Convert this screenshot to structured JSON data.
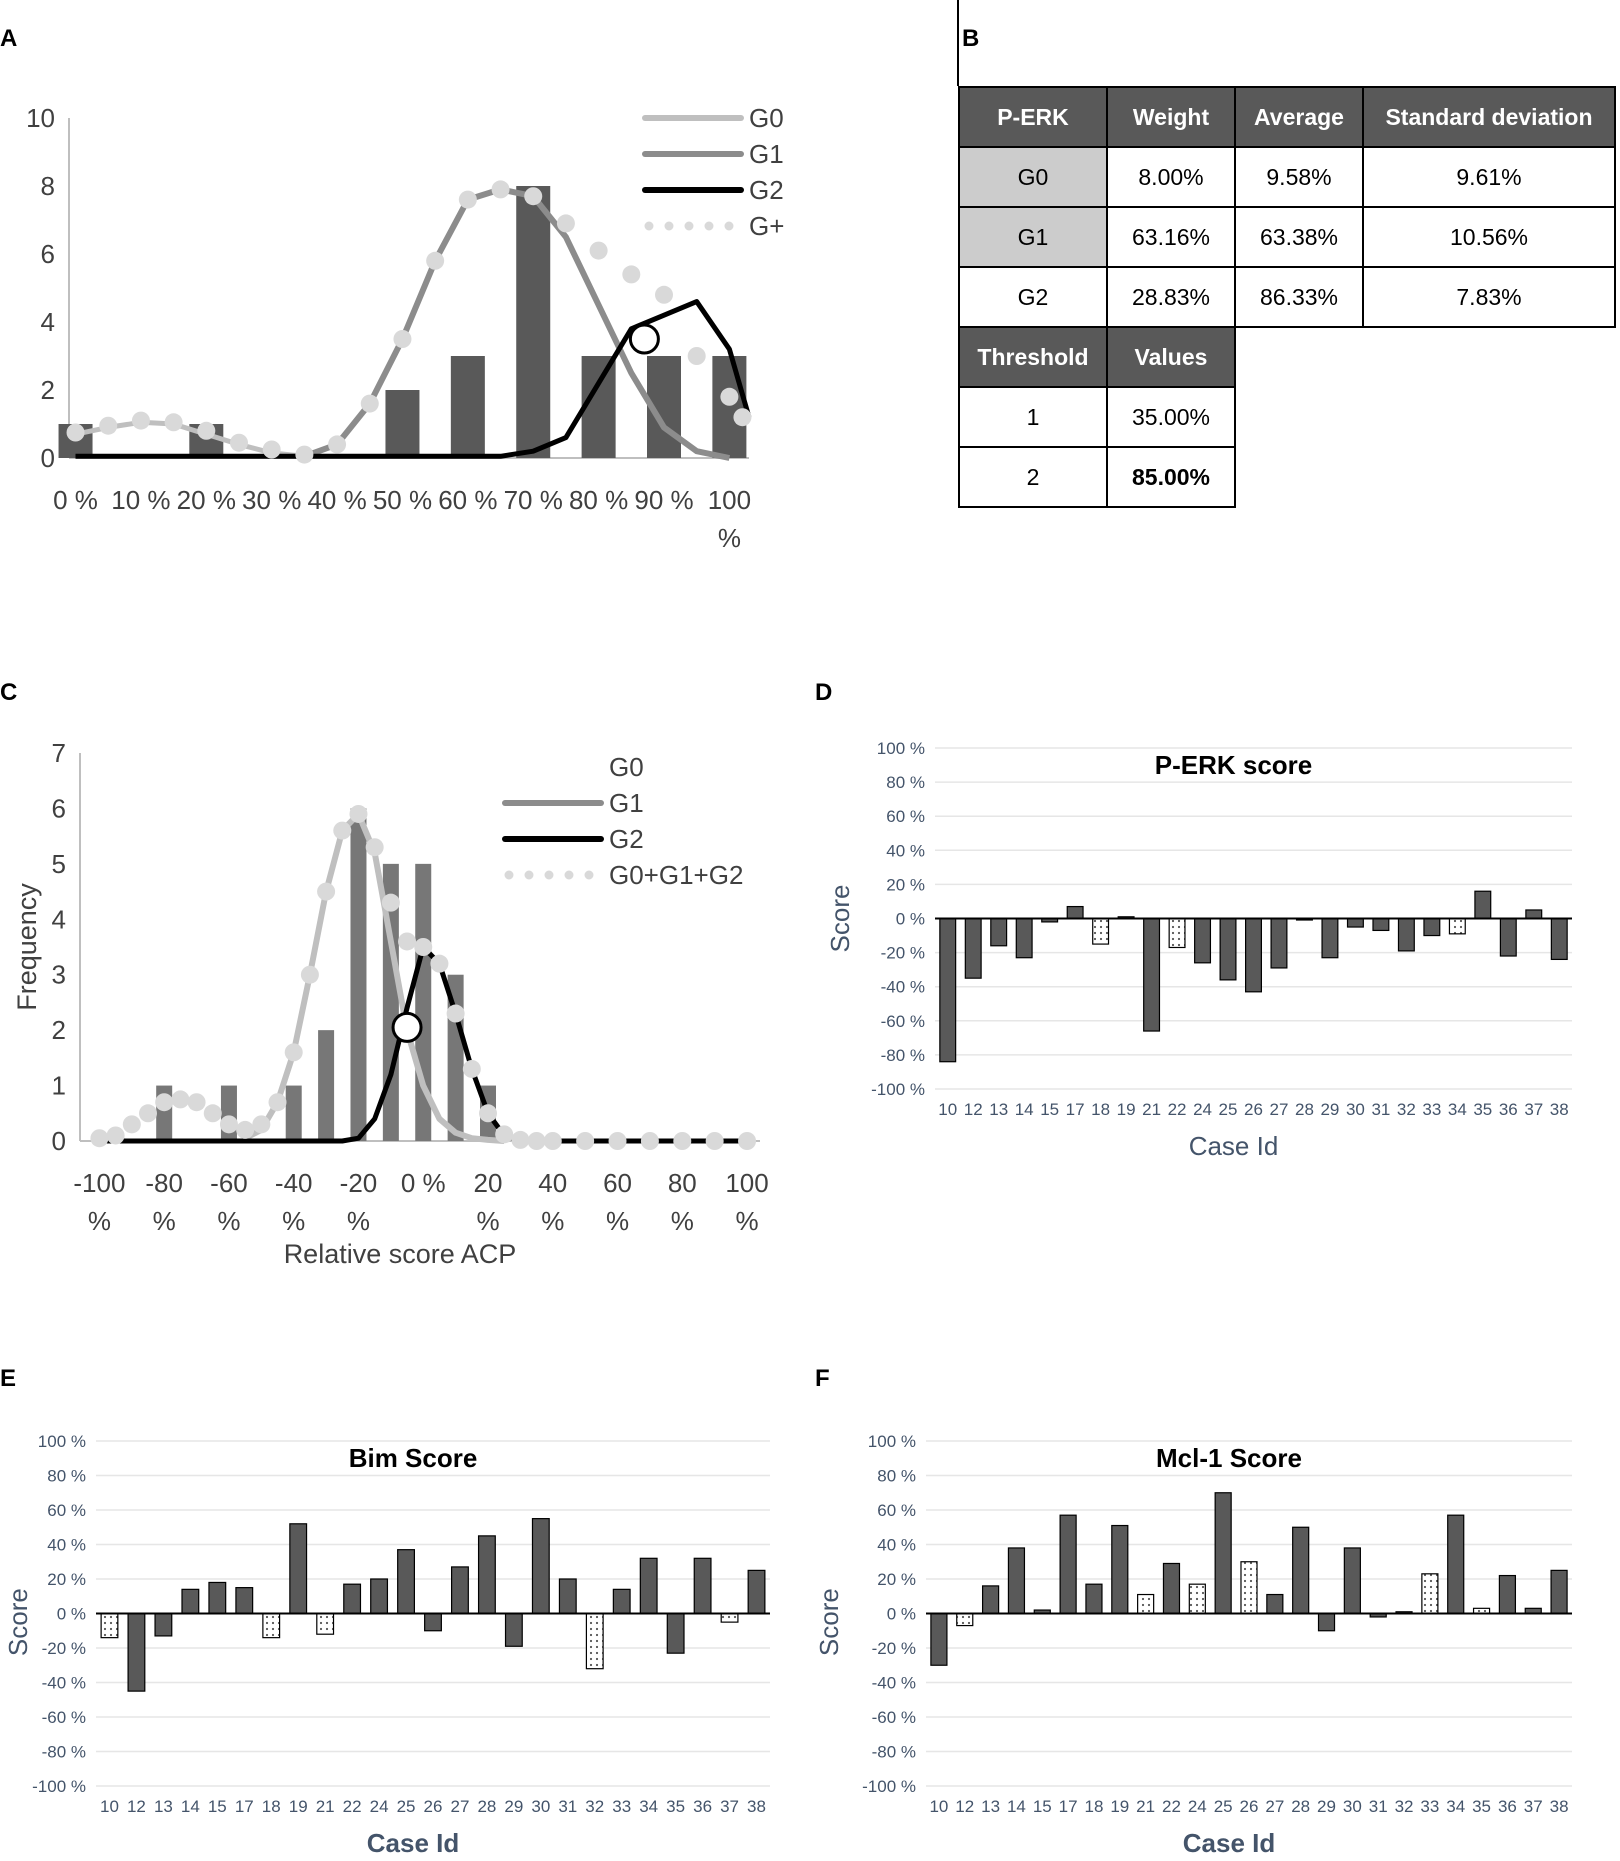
{
  "panel_labels": {
    "a": "A",
    "b": "B",
    "c": "C",
    "d": "D",
    "e": "E",
    "f": "F"
  },
  "colors": {
    "bar_dark": "#595959",
    "bar_mid": "#777777",
    "g0": "#bfbfbf",
    "g1": "#8c8c8c",
    "g2": "#000000",
    "gsum": "#d9d9d9",
    "grid": "#e6e6e6",
    "tick_blue": "#44546a"
  },
  "table_b": {
    "header": [
      "P-ERK",
      "Weight",
      "Average",
      "Standard deviation"
    ],
    "rows": [
      {
        "label": "G0",
        "weight": "8.00%",
        "average": "9.58%",
        "sd": "9.61%"
      },
      {
        "label": "G1",
        "weight": "63.16%",
        "average": "63.38%",
        "sd": "10.56%"
      },
      {
        "label": "G2",
        "weight": "28.83%",
        "average": "86.33%",
        "sd": "7.83%"
      }
    ],
    "threshold_header": [
      "Threshold",
      "Values"
    ],
    "thresholds": [
      {
        "label": "1",
        "value": "35.00%"
      },
      {
        "label": "2",
        "value": "85.00%"
      }
    ]
  },
  "chart_data": [
    {
      "id": "A",
      "type": "bar+line",
      "title": "",
      "xlabel": "",
      "ylabel": "",
      "ylim": [
        0,
        10
      ],
      "yticks": [
        "0",
        "2",
        "4",
        "6",
        "8",
        "10"
      ],
      "xtick_values": [
        0,
        10,
        20,
        30,
        40,
        50,
        60,
        70,
        80,
        90,
        100
      ],
      "xtick_labels": [
        {
          "l1": "0 %"
        },
        {
          "l1": "10 %"
        },
        {
          "l1": "20 %"
        },
        {
          "l1": "30 %"
        },
        {
          "l1": "40 %"
        },
        {
          "l1": "50 %"
        },
        {
          "l1": "60 %"
        },
        {
          "l1": "70 %"
        },
        {
          "l1": "80 %"
        },
        {
          "l1": "90 %"
        },
        {
          "l1": "100",
          "l2": "%"
        }
      ],
      "bars": [
        {
          "x": 0,
          "value": 1
        },
        {
          "x": 10,
          "value": 0
        },
        {
          "x": 20,
          "value": 1
        },
        {
          "x": 30,
          "value": 0
        },
        {
          "x": 40,
          "value": 0
        },
        {
          "x": 50,
          "value": 2
        },
        {
          "x": 60,
          "value": 3
        },
        {
          "x": 70,
          "value": 8
        },
        {
          "x": 80,
          "value": 3
        },
        {
          "x": 90,
          "value": 3
        },
        {
          "x": 100,
          "value": 3
        }
      ],
      "legend": [
        {
          "name": "G0",
          "style": "g0"
        },
        {
          "name": "G1",
          "style": "g1"
        },
        {
          "name": "G2",
          "style": "g2"
        },
        {
          "name": "G+",
          "style": "gsum"
        }
      ],
      "series": [
        {
          "name": "G0",
          "x": [
            0,
            5,
            10,
            15,
            20,
            25,
            30,
            35
          ],
          "values": [
            0.7,
            0.9,
            1.05,
            1.0,
            0.7,
            0.4,
            0.15,
            0.05
          ]
        },
        {
          "name": "G1",
          "x": [
            35,
            40,
            45,
            50,
            55,
            60,
            65,
            70,
            75,
            80,
            85,
            90,
            95,
            100
          ],
          "values": [
            0.05,
            0.4,
            1.6,
            3.5,
            5.8,
            7.6,
            7.9,
            7.7,
            6.5,
            4.5,
            2.5,
            0.9,
            0.2,
            0.0
          ]
        },
        {
          "name": "G2",
          "x": [
            0,
            65,
            70,
            75,
            80,
            85,
            90,
            95,
            100,
            103
          ],
          "values": [
            0.05,
            0.05,
            0.2,
            0.6,
            2.2,
            3.8,
            4.2,
            4.6,
            3.2,
            1.2
          ]
        },
        {
          "name": "G+",
          "x": [
            0,
            5,
            10,
            15,
            20,
            25,
            30,
            35,
            40,
            45,
            50,
            55,
            60,
            65,
            70,
            75,
            80,
            85,
            90,
            95,
            100,
            102
          ],
          "values": [
            0.75,
            0.95,
            1.1,
            1.05,
            0.8,
            0.45,
            0.25,
            0.1,
            0.4,
            1.6,
            3.5,
            5.8,
            7.6,
            7.9,
            7.7,
            6.9,
            6.1,
            5.4,
            4.8,
            3.0,
            1.8,
            1.2
          ]
        }
      ],
      "marker": {
        "x": 87,
        "y": 3.5
      }
    },
    {
      "id": "C",
      "type": "bar+line",
      "title": "",
      "xlabel": "Relative score ACP",
      "ylabel": "Frequency",
      "ylim": [
        0,
        7
      ],
      "yticks": [
        "0",
        "1",
        "2",
        "3",
        "4",
        "5",
        "6",
        "7"
      ],
      "xtick_values": [
        -100,
        -80,
        -60,
        -40,
        -20,
        0,
        20,
        40,
        60,
        80,
        100
      ],
      "xtick_labels": [
        {
          "l1": "-100",
          "l2": "%"
        },
        {
          "l1": "-80",
          "l2": "%"
        },
        {
          "l1": "-60",
          "l2": "%"
        },
        {
          "l1": "-40",
          "l2": "%"
        },
        {
          "l1": "-20",
          "l2": "%"
        },
        {
          "l1": "0 %"
        },
        {
          "l1": "20",
          "l2": "%"
        },
        {
          "l1": "40",
          "l2": "%"
        },
        {
          "l1": "60",
          "l2": "%"
        },
        {
          "l1": "80",
          "l2": "%"
        },
        {
          "l1": "100",
          "l2": "%"
        }
      ],
      "bars": [
        {
          "x": -80,
          "value": 1
        },
        {
          "x": -60,
          "value": 1
        },
        {
          "x": -40,
          "value": 1
        },
        {
          "x": -30,
          "value": 2
        },
        {
          "x": -20,
          "value": 6
        },
        {
          "x": -10,
          "value": 5
        },
        {
          "x": 0,
          "value": 5
        },
        {
          "x": 10,
          "value": 3
        },
        {
          "x": 20,
          "value": 1
        }
      ],
      "legend": [
        {
          "name": "G0",
          "style": "none"
        },
        {
          "name": "G1",
          "style": "g1"
        },
        {
          "name": "G2",
          "style": "g2"
        },
        {
          "name": "G0+G1+G2",
          "style": "gsum"
        }
      ],
      "series": [
        {
          "name": "G1",
          "x": [
            -55,
            -50,
            -45,
            -40,
            -35,
            -30,
            -25,
            -20,
            -15,
            -10,
            -5,
            0,
            5,
            10,
            15,
            20,
            25
          ],
          "values": [
            0.05,
            0.2,
            0.7,
            1.6,
            3.0,
            4.5,
            5.6,
            5.9,
            5.2,
            3.6,
            2.0,
            1.0,
            0.4,
            0.15,
            0.05,
            0.02,
            0.0
          ]
        },
        {
          "name": "G2",
          "x": [
            -100,
            -25,
            -20,
            -15,
            -10,
            -5,
            0,
            5,
            10,
            15,
            20,
            25,
            30,
            100
          ],
          "values": [
            0.0,
            0.0,
            0.05,
            0.4,
            1.2,
            2.4,
            3.5,
            3.2,
            2.3,
            1.3,
            0.5,
            0.1,
            0.0,
            0.0
          ]
        },
        {
          "name": "G0+G1+G2",
          "x": [
            -100,
            -95,
            -90,
            -85,
            -80,
            -75,
            -70,
            -65,
            -60,
            -55,
            -50,
            -45,
            -40,
            -35,
            -30,
            -25,
            -20,
            -15,
            -10,
            -5,
            0,
            5,
            10,
            15,
            20,
            25,
            30,
            35,
            40,
            50,
            60,
            70,
            80,
            90,
            100
          ],
          "values": [
            0.05,
            0.1,
            0.3,
            0.5,
            0.7,
            0.75,
            0.7,
            0.5,
            0.3,
            0.2,
            0.3,
            0.7,
            1.6,
            3.0,
            4.5,
            5.6,
            5.9,
            5.3,
            4.3,
            3.6,
            3.5,
            3.2,
            2.3,
            1.3,
            0.5,
            0.12,
            0.02,
            0.0,
            0.0,
            0.0,
            0.0,
            0.0,
            0.0,
            0.0,
            0.0
          ]
        }
      ],
      "marker": {
        "x": -5,
        "y": 2.05
      }
    },
    {
      "id": "D",
      "type": "bar",
      "title": "P-ERK score",
      "xlabel": "Case Id",
      "ylabel": "Score",
      "ylim": [
        -100,
        100
      ],
      "yticks": [
        "-100 %",
        "-80 %",
        "-60 %",
        "-40 %",
        "-20 %",
        "0 %",
        "20 %",
        "40 %",
        "60 %",
        "80 %",
        "100 %"
      ],
      "categories": [
        "10",
        "12",
        "13",
        "14",
        "15",
        "17",
        "18",
        "19",
        "21",
        "22",
        "24",
        "25",
        "26",
        "27",
        "28",
        "29",
        "30",
        "31",
        "32",
        "33",
        "34",
        "35",
        "36",
        "37",
        "38"
      ],
      "values": [
        -84,
        -35,
        -16,
        -23,
        -2,
        7,
        -15,
        1,
        -66,
        -17,
        -26,
        -36,
        -43,
        -29,
        0,
        -23,
        -5,
        -7,
        -19,
        -10,
        -9,
        16,
        -22,
        5,
        -24
      ],
      "styles": [
        "s",
        "s",
        "s",
        "s",
        "s",
        "s",
        "d",
        "s",
        "s",
        "d",
        "s",
        "s",
        "s",
        "s",
        "s",
        "s",
        "s",
        "s",
        "s",
        "s",
        "d",
        "s",
        "s",
        "s",
        "s"
      ]
    },
    {
      "id": "E",
      "type": "bar",
      "title": "Bim Score",
      "xlabel": "Case Id",
      "ylabel": "Score",
      "ylim": [
        -100,
        100
      ],
      "yticks": [
        "-100 %",
        "-80 %",
        "-60 %",
        "-40 %",
        "-20 %",
        "0 %",
        "20 %",
        "40 %",
        "60 %",
        "80 %",
        "100 %"
      ],
      "categories": [
        "10",
        "12",
        "13",
        "14",
        "15",
        "17",
        "18",
        "19",
        "21",
        "22",
        "24",
        "25",
        "26",
        "27",
        "28",
        "29",
        "30",
        "31",
        "32",
        "33",
        "34",
        "35",
        "36",
        "37",
        "38"
      ],
      "values": [
        -14,
        -45,
        -13,
        14,
        18,
        15,
        -14,
        52,
        -12,
        17,
        20,
        37,
        -10,
        27,
        45,
        -19,
        55,
        20,
        -32,
        14,
        32,
        -23,
        32,
        -5,
        25
      ],
      "styles": [
        "d",
        "s",
        "s",
        "s",
        "s",
        "s",
        "d",
        "s",
        "d",
        "s",
        "s",
        "s",
        "s",
        "s",
        "s",
        "s",
        "s",
        "s",
        "d",
        "s",
        "s",
        "s",
        "s",
        "d",
        "s"
      ]
    },
    {
      "id": "F",
      "type": "bar",
      "title": "Mcl-1 Score",
      "xlabel": "Case Id",
      "ylabel": "Score",
      "ylim": [
        -100,
        100
      ],
      "yticks": [
        "-100 %",
        "-80 %",
        "-60 %",
        "-40 %",
        "-20 %",
        "0 %",
        "20 %",
        "40 %",
        "60 %",
        "80 %",
        "100 %"
      ],
      "categories": [
        "10",
        "12",
        "13",
        "14",
        "15",
        "17",
        "18",
        "19",
        "21",
        "22",
        "24",
        "25",
        "26",
        "27",
        "28",
        "29",
        "30",
        "31",
        "32",
        "33",
        "34",
        "35",
        "36",
        "37",
        "38"
      ],
      "values": [
        -30,
        -7,
        16,
        38,
        2,
        57,
        17,
        51,
        11,
        29,
        17,
        70,
        30,
        11,
        50,
        -10,
        38,
        -2,
        1,
        23,
        57,
        3,
        22,
        3,
        25
      ],
      "styles": [
        "s",
        "d",
        "s",
        "s",
        "s",
        "s",
        "s",
        "s",
        "d",
        "s",
        "d",
        "s",
        "d",
        "s",
        "s",
        "s",
        "s",
        "s",
        "s",
        "d",
        "s",
        "d",
        "s",
        "s",
        "s"
      ]
    }
  ]
}
